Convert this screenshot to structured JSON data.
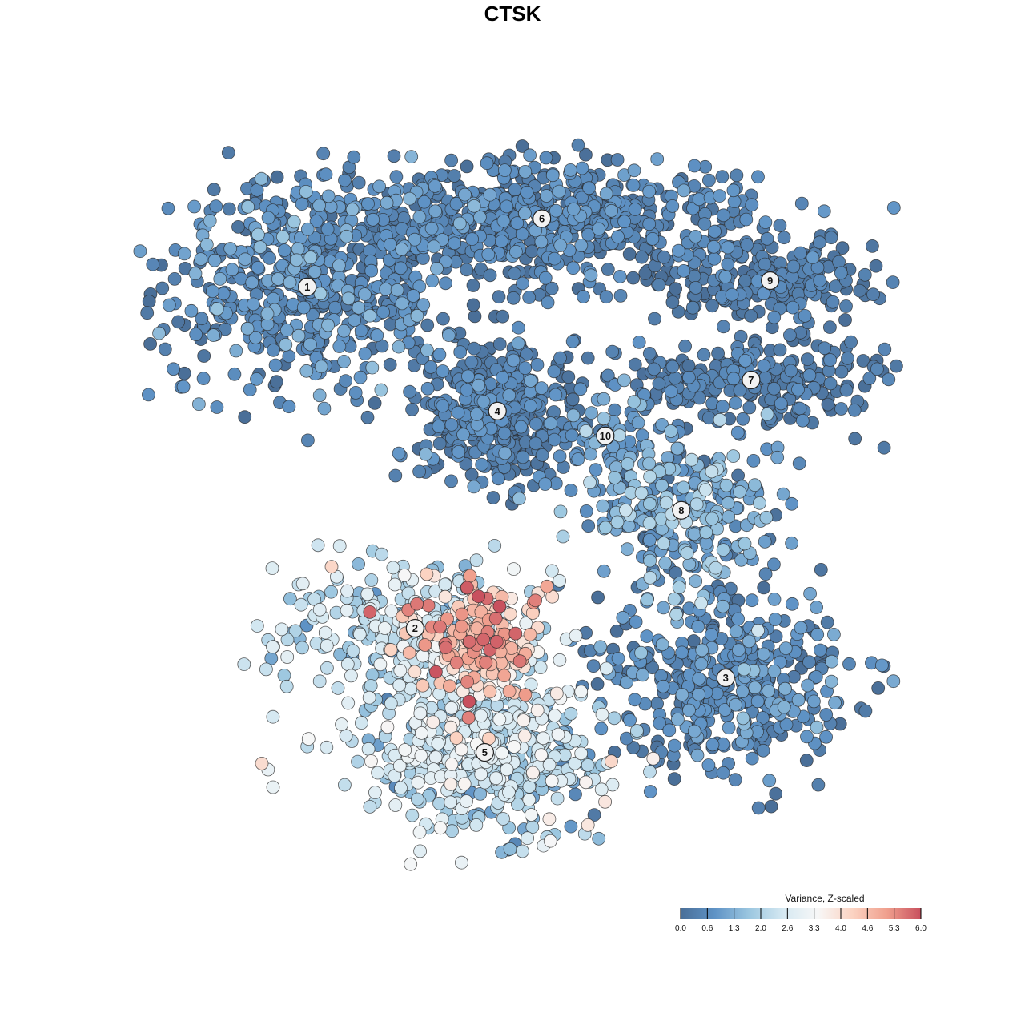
{
  "chart_data": {
    "type": "scatter",
    "title": "CTSK",
    "xlabel": "",
    "ylabel": "",
    "grid": false,
    "colorbar": {
      "title": "Variance, Z-scaled",
      "ticks": [
        "0.0",
        "0.6",
        "1.3",
        "2.0",
        "2.6",
        "3.3",
        "4.0",
        "4.6",
        "5.3",
        "6.0"
      ],
      "range": [
        0,
        6
      ],
      "placement": "bottom-right",
      "colors": [
        "#4a6f98",
        "#5f93c6",
        "#9cc7e0",
        "#d6e9f2",
        "#f7f7f7",
        "#fbd3c2",
        "#f0a08e",
        "#c8505e"
      ]
    },
    "cluster_labels": [
      "1",
      "2",
      "3",
      "4",
      "5",
      "6",
      "7",
      "8",
      "9",
      "10"
    ],
    "clusters": [
      {
        "label": "1",
        "center": [
          -33,
          37
        ],
        "spread": [
          12,
          9
        ],
        "n": 560,
        "value_mean": 0.6,
        "value_sd": 0.45
      },
      {
        "label": "2",
        "center": [
          -16,
          -18
        ],
        "spread": [
          11,
          6
        ],
        "n": 300,
        "value_mean": 2.3,
        "value_sd": 0.55
      },
      {
        "label": "3",
        "center": [
          33,
          -26
        ],
        "spread": [
          10,
          7
        ],
        "n": 420,
        "value_mean": 0.55,
        "value_sd": 0.45
      },
      {
        "label": "4",
        "center": [
          -3,
          17
        ],
        "spread": [
          6,
          6
        ],
        "n": 420,
        "value_mean": 0.35,
        "value_sd": 0.3
      },
      {
        "label": "5",
        "center": [
          -5,
          -38
        ],
        "spread": [
          10,
          6
        ],
        "n": 520,
        "value_mean": 2.2,
        "value_sd": 0.7
      },
      {
        "label": "6",
        "center": [
          4,
          48
        ],
        "spread": [
          17,
          5
        ],
        "n": 620,
        "value_mean": 0.45,
        "value_sd": 0.35
      },
      {
        "label": "7",
        "center": [
          37,
          22
        ],
        "spread": [
          11,
          4
        ],
        "n": 240,
        "value_mean": 0.3,
        "value_sd": 0.25
      },
      {
        "label": "8",
        "center": [
          26,
          1
        ],
        "spread": [
          8,
          6
        ],
        "n": 260,
        "value_mean": 1.2,
        "value_sd": 0.6
      },
      {
        "label": "9",
        "center": [
          40,
          38
        ],
        "spread": [
          8,
          3
        ],
        "n": 200,
        "value_mean": 0.3,
        "value_sd": 0.25
      },
      {
        "label": "10",
        "center": [
          14,
          13
        ],
        "spread": [
          4,
          4
        ],
        "n": 60,
        "value_mean": 1.0,
        "value_sd": 0.4
      },
      {
        "label": "",
        "center": [
          -6,
          -20
        ],
        "spread": [
          5,
          5
        ],
        "n": 180,
        "value_mean": 4.4,
        "value_sd": 0.9
      }
    ],
    "xlim": [
      -60,
      60
    ],
    "ylim": [
      -60,
      60
    ]
  }
}
